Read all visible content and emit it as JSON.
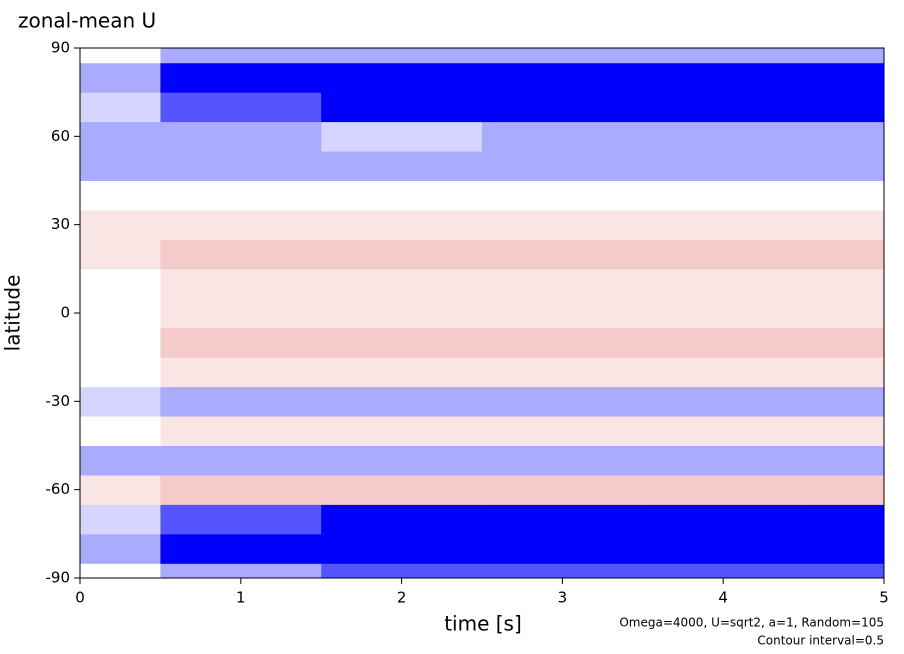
{
  "chart_data": {
    "type": "contour",
    "title": "zonal-mean U",
    "x_label": "time [s]",
    "y_label": "latitude",
    "annotations": [
      "Omega=4000, U=sqrt2, a=1, Random=105",
      "Contour interval=0.5"
    ],
    "x": [
      0,
      1,
      2,
      3,
      4,
      5
    ],
    "y": [
      -90,
      -80,
      -70,
      -60,
      -50,
      -40,
      -30,
      -20,
      -10,
      0,
      10,
      20,
      30,
      40,
      50,
      60,
      70,
      80,
      90
    ],
    "z": [
      [
        0,
        -1,
        -2,
        -2,
        -2,
        -2
      ],
      [
        -1,
        -3,
        -6,
        -6,
        -6,
        -6
      ],
      [
        -0.5,
        -2,
        -5,
        -6,
        -6,
        -6
      ],
      [
        0.5,
        1,
        1,
        1,
        1,
        1
      ],
      [
        -1,
        -1,
        -1,
        -1,
        -1,
        -1
      ],
      [
        0,
        0.5,
        0.5,
        0.5,
        0.5,
        0.5
      ],
      [
        -0.5,
        -1,
        -1,
        -1,
        -1,
        -1
      ],
      [
        0,
        0.5,
        0.5,
        0.5,
        0.5,
        0.5
      ],
      [
        0,
        1,
        1,
        1,
        1,
        1
      ],
      [
        0,
        0.5,
        0.5,
        0.5,
        0.5,
        0.5
      ],
      [
        0,
        0.5,
        0.5,
        0.5,
        0.5,
        0.5
      ],
      [
        0.5,
        1,
        1,
        1,
        1,
        1
      ],
      [
        0.5,
        0.5,
        0.5,
        0.5,
        0.5,
        0.5
      ],
      [
        0,
        0,
        0,
        0,
        0,
        0
      ],
      [
        -1,
        -1,
        -1,
        -1,
        -1,
        -1
      ],
      [
        -1,
        -1,
        -0.5,
        -1,
        -1,
        -1
      ],
      [
        -0.5,
        -2,
        -4,
        -5,
        -5,
        -5
      ],
      [
        -1,
        -4,
        -6,
        -6,
        -6,
        -6
      ],
      [
        0,
        -1,
        -1,
        -1,
        -1,
        -1
      ]
    ],
    "colormap": [
      "#0000ff",
      "#ffffff",
      "#e06060"
    ],
    "xlim": [
      0,
      5
    ],
    "ylim": [
      -90,
      90
    ],
    "xticks": [
      0,
      1,
      2,
      3,
      4,
      5
    ],
    "yticks": [
      -90,
      -60,
      -30,
      0,
      30,
      60,
      90
    ]
  }
}
